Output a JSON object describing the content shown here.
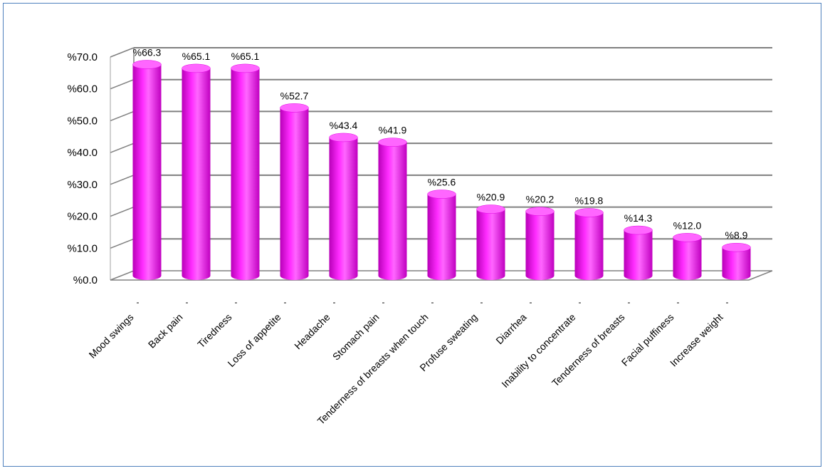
{
  "chart_data": {
    "type": "bar",
    "categories": [
      "Mood swings",
      "Back pain",
      "Tiredness",
      "Loss of appetite",
      "Headache",
      "Stomach pain",
      "Tenderness of breasts  when touch",
      "Profuse sweating",
      "Diarrhea",
      "Inability to concentrate",
      "Tenderness of breasts",
      "Facial puffiness",
      "Increase weight"
    ],
    "values": [
      66.3,
      65.1,
      65.1,
      52.7,
      43.4,
      41.9,
      25.6,
      20.9,
      20.2,
      19.8,
      14.3,
      12.0,
      8.9
    ],
    "data_labels": [
      "%66.3",
      "%65.1",
      "%65.1",
      "%52.7",
      "%43.4",
      "%41.9",
      "%25.6",
      "%20.9",
      "%20.2",
      "%19.8",
      "%14.3",
      "%12.0",
      "%8.9"
    ],
    "y_ticks": [
      "%0.0",
      "%10.0",
      "%20.0",
      "%30.0",
      "%40.0",
      "%50.0",
      "%60.0",
      "%70.0"
    ],
    "ylim": [
      0,
      70
    ],
    "title": "",
    "xlabel": "",
    "ylabel": "",
    "grid": true,
    "bar_shape": "cylinder-3d",
    "colors": {
      "bar": "#ff00ff",
      "bar_top": "#ff66ff",
      "bar_shadow": "#b000b0",
      "grid": "#808080",
      "frame": "#4f81bd"
    }
  }
}
